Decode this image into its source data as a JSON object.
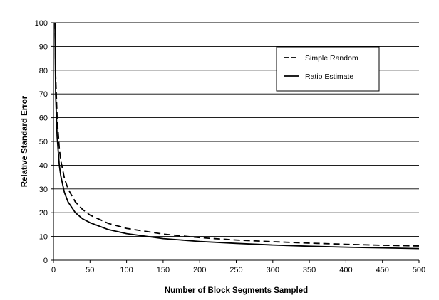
{
  "chart_data": {
    "type": "line",
    "title": "",
    "xlabel": "Number of Block Segments Sampled",
    "ylabel": "Relative Standard Error",
    "xlim": [
      0,
      500
    ],
    "ylim": [
      0,
      100
    ],
    "x_ticks": [
      "0",
      "50",
      "100",
      "150",
      "200",
      "250",
      "300",
      "350",
      "400",
      "450",
      "500"
    ],
    "y_ticks": [
      "0",
      "10",
      "20",
      "30",
      "40",
      "50",
      "60",
      "70",
      "80",
      "90",
      "100"
    ],
    "grid": "horizontal",
    "legend_position": "top-right",
    "x": [
      2,
      3,
      5,
      8,
      10,
      15,
      20,
      30,
      40,
      50,
      75,
      100,
      150,
      200,
      250,
      300,
      350,
      400,
      450,
      500
    ],
    "series": [
      {
        "name": "Simple Random",
        "style": "dashed",
        "color": "#000000",
        "values": [
          100,
          78,
          60,
          47,
          42,
          34.5,
          30,
          24.5,
          21.3,
          19,
          15.5,
          13.4,
          11,
          9.5,
          8.5,
          7.8,
          7.2,
          6.7,
          6.3,
          6.0
        ]
      },
      {
        "name": "Ratio  Estimate",
        "style": "solid",
        "color": "#000000",
        "values": [
          100,
          70,
          52,
          40,
          35.5,
          28.5,
          24.5,
          20,
          17.4,
          15.8,
          12.9,
          11.2,
          9.1,
          7.9,
          7.1,
          6.4,
          5.9,
          5.5,
          5.2,
          4.9
        ]
      }
    ]
  }
}
